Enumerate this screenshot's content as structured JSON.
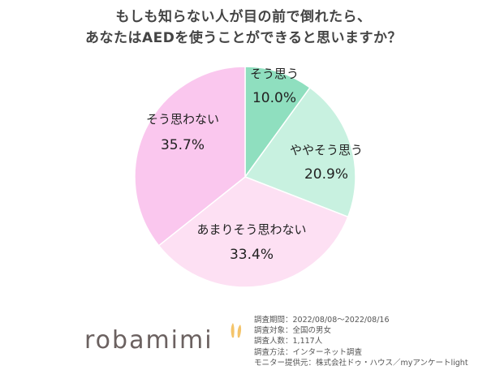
{
  "chart_data": {
    "type": "pie",
    "title_lines": [
      "もしも知らない人が目の前で倒れたら、",
      "あなたはAEDを使うことができると思いますか？"
    ],
    "slices": [
      {
        "label": "そう思う",
        "value": 10.0,
        "value_text": "10.0%",
        "color": "#8fdfbf"
      },
      {
        "label": "ややそう思う",
        "value": 20.9,
        "value_text": "20.9%",
        "color": "#c8f1e0"
      },
      {
        "label": "あまりそう思わない",
        "value": 33.4,
        "value_text": "33.4%",
        "color": "#fde0f3"
      },
      {
        "label": "そう思わない",
        "value": 35.7,
        "value_text": "35.7%",
        "color": "#fac7ee"
      }
    ]
  },
  "footer": {
    "logo_text": "robamimi",
    "notes": [
      "調査期間：2022/08/08～2022/08/16",
      "調査対象：全国の男女",
      "調査人数：1,117人",
      "調査方法：インターネット調査",
      "モニター提供元：株式会社ドゥ・ハウス／myアンケートlight"
    ]
  }
}
